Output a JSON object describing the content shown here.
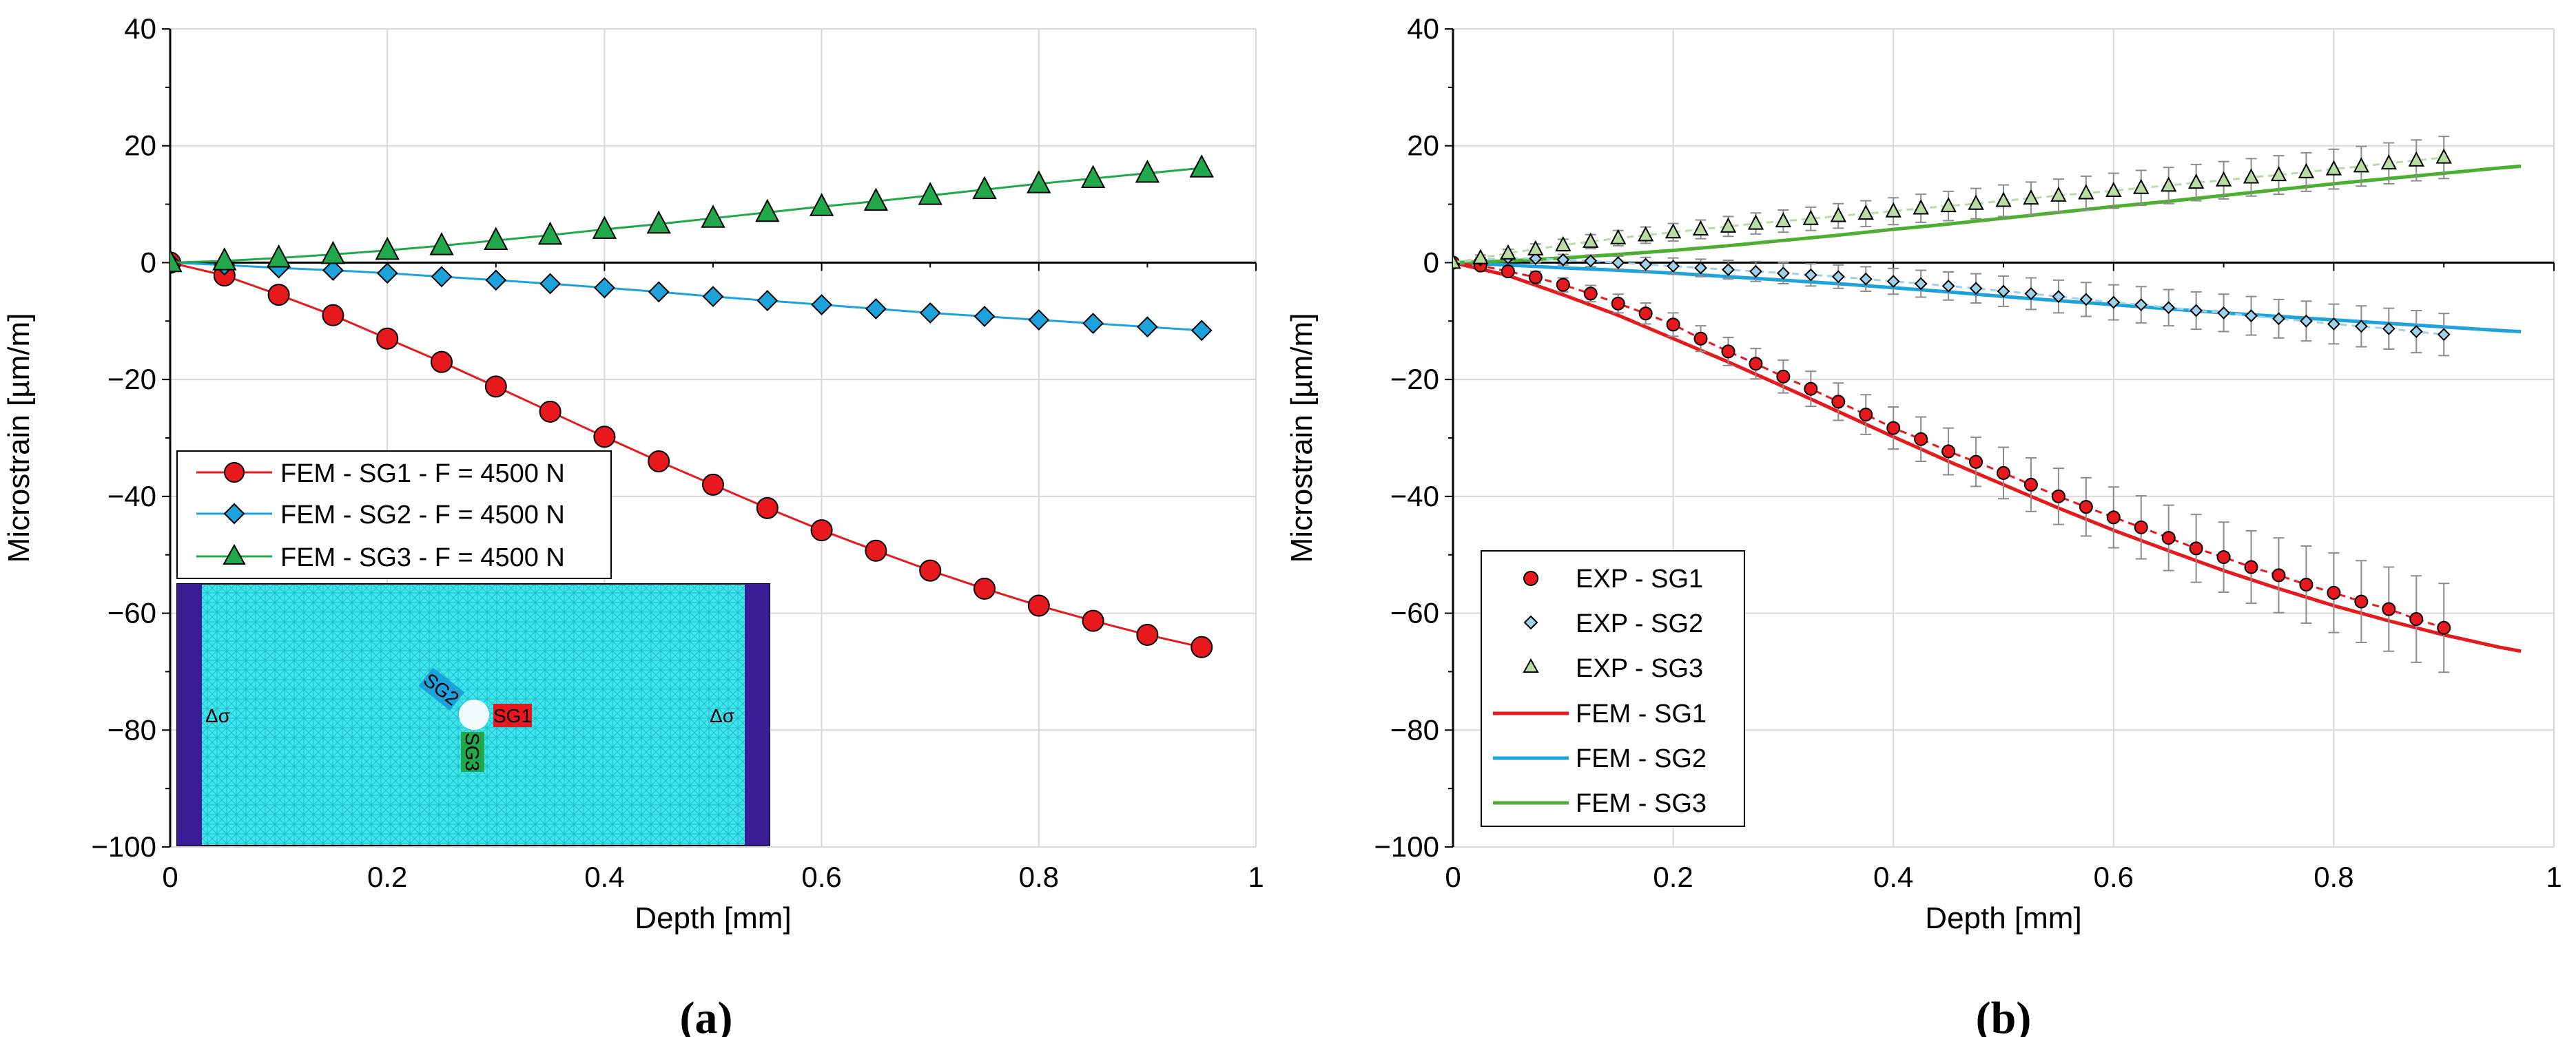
{
  "chart_data": [
    {
      "type": "line",
      "panel_label": "(a)",
      "xlabel": "Depth [mm]",
      "ylabel": "Microstrain [µm/m]",
      "xlim": [
        0,
        1
      ],
      "ylim": [
        -100,
        40
      ],
      "xticks": [
        0,
        0.2,
        0.4,
        0.6,
        0.8,
        1
      ],
      "xtick_labels": [
        "0",
        "0.2",
        "0.4",
        "0.6",
        "0.8",
        "1"
      ],
      "yticks": [
        -100,
        -80,
        -60,
        -40,
        -20,
        0,
        20,
        40
      ],
      "ytick_labels": [
        "−100",
        "−80",
        "−60",
        "−40",
        "−20",
        "0",
        "20",
        "40"
      ],
      "grid": true,
      "legend_position": "middle-left",
      "x": [
        0,
        0.05,
        0.1,
        0.15,
        0.2,
        0.25,
        0.3,
        0.35,
        0.4,
        0.45,
        0.5,
        0.55,
        0.6,
        0.65,
        0.7,
        0.75,
        0.8,
        0.85,
        0.9,
        0.95
      ],
      "series": [
        {
          "name": "FEM - SG1 - F = 4500 N",
          "color": "#e8191c",
          "marker": "circle",
          "values": [
            0,
            -2.2,
            -5.5,
            -9,
            -13,
            -17,
            -21.2,
            -25.5,
            -29.8,
            -34,
            -38,
            -42,
            -45.8,
            -49.3,
            -52.7,
            -55.8,
            -58.7,
            -61.3,
            -63.7,
            -65.8
          ]
        },
        {
          "name": "FEM - SG2 - F = 4500 N",
          "color": "#1ca3dc",
          "marker": "diamond",
          "values": [
            0,
            -0.4,
            -0.9,
            -1.3,
            -1.8,
            -2.4,
            -3,
            -3.6,
            -4.3,
            -5,
            -5.8,
            -6.5,
            -7.2,
            -7.9,
            -8.6,
            -9.2,
            -9.8,
            -10.4,
            -11,
            -11.6
          ]
        },
        {
          "name": "FEM - SG3 - F = 4500 N",
          "color": "#20a84b",
          "marker": "triangle",
          "values": [
            0,
            0.3,
            0.8,
            1.4,
            2.1,
            2.9,
            3.8,
            4.7,
            5.7,
            6.6,
            7.6,
            8.6,
            9.6,
            10.5,
            11.5,
            12.5,
            13.5,
            14.4,
            15.3,
            16.2
          ]
        }
      ],
      "inset": {
        "labels": {
          "sg1": "SG1",
          "sg2": "SG2",
          "sg3": "SG3",
          "load_left": "Δσ",
          "load_right": "Δσ"
        },
        "colors": {
          "mesh": "#3ee8ee",
          "clamp": "#3a1d96",
          "sg1": "#e8191c",
          "sg2": "#1ca3dc",
          "sg3": "#20a84b"
        }
      }
    },
    {
      "type": "line",
      "panel_label": "(b)",
      "xlabel": "Depth [mm]",
      "ylabel": "Microstrain [µm/m]",
      "xlim": [
        0,
        1
      ],
      "ylim": [
        -100,
        40
      ],
      "xticks": [
        0,
        0.2,
        0.4,
        0.6,
        0.8,
        1
      ],
      "xtick_labels": [
        "0",
        "0.2",
        "0.4",
        "0.6",
        "0.8",
        "1"
      ],
      "yticks": [
        -100,
        -80,
        -60,
        -40,
        -20,
        0,
        20,
        40
      ],
      "ytick_labels": [
        "−100",
        "−80",
        "−60",
        "−40",
        "−20",
        "0",
        "20",
        "40"
      ],
      "grid": true,
      "legend_position": "bottom-left",
      "exp_x": [
        0,
        0.025,
        0.05,
        0.075,
        0.1,
        0.125,
        0.15,
        0.175,
        0.2,
        0.225,
        0.25,
        0.275,
        0.3,
        0.325,
        0.35,
        0.375,
        0.4,
        0.425,
        0.45,
        0.475,
        0.5,
        0.525,
        0.55,
        0.575,
        0.6,
        0.625,
        0.65,
        0.675,
        0.7,
        0.725,
        0.75,
        0.775,
        0.8,
        0.825,
        0.85,
        0.875,
        0.9
      ],
      "exp_series": [
        {
          "name": "EXP - SG1",
          "color": "#e8191c",
          "marker": "circle",
          "values": [
            0,
            -0.5,
            -1.5,
            -2.5,
            -3.8,
            -5.3,
            -7,
            -8.7,
            -10.6,
            -13,
            -15.2,
            -17.3,
            -19.5,
            -21.6,
            -23.8,
            -26,
            -28.3,
            -30.2,
            -32.3,
            -34.1,
            -36,
            -38,
            -40,
            -41.8,
            -43.6,
            -45.3,
            -47.1,
            -48.9,
            -50.4,
            -52.1,
            -53.5,
            -55.1,
            -56.5,
            -58,
            -59.3,
            -61,
            -62.5
          ],
          "errors": [
            0.3,
            0.5,
            0.8,
            1,
            1.2,
            1.4,
            1.6,
            1.8,
            2,
            2.2,
            2.4,
            2.6,
            2.8,
            3,
            3.2,
            3.4,
            3.6,
            3.8,
            4,
            4.2,
            4.4,
            4.6,
            4.8,
            5,
            5.2,
            5.4,
            5.6,
            5.8,
            6,
            6.2,
            6.4,
            6.6,
            6.8,
            7,
            7.2,
            7.4,
            7.6
          ]
        },
        {
          "name": "EXP - SG2",
          "color": "#9ed2ea",
          "marker": "diamond",
          "values": [
            0,
            0.5,
            0.8,
            0.7,
            0.5,
            0.3,
            0,
            -0.3,
            -0.6,
            -0.9,
            -1.2,
            -1.5,
            -1.8,
            -2.1,
            -2.4,
            -2.8,
            -3.2,
            -3.6,
            -4,
            -4.4,
            -4.9,
            -5.3,
            -5.8,
            -6.3,
            -6.8,
            -7.2,
            -7.7,
            -8.2,
            -8.6,
            -9.1,
            -9.6,
            -10,
            -10.5,
            -10.9,
            -11.3,
            -11.8,
            -12.3
          ],
          "errors": [
            0.3,
            0.4,
            0.6,
            0.7,
            0.9,
            1,
            1.1,
            1.2,
            1.4,
            1.5,
            1.6,
            1.7,
            1.8,
            1.9,
            2,
            2.1,
            2.2,
            2.3,
            2.4,
            2.5,
            2.6,
            2.7,
            2.8,
            2.9,
            3,
            3.1,
            3.1,
            3.2,
            3.2,
            3.3,
            3.3,
            3.4,
            3.4,
            3.5,
            3.5,
            3.6,
            3.6
          ]
        },
        {
          "name": "EXP - SG3",
          "color": "#b7dda2",
          "marker": "triangle",
          "values": [
            0,
            0.8,
            1.6,
            2.3,
            3,
            3.6,
            4.2,
            4.7,
            5.2,
            5.7,
            6.2,
            6.7,
            7.1,
            7.5,
            8,
            8.4,
            8.8,
            9.3,
            9.7,
            10.1,
            10.6,
            11,
            11.5,
            11.9,
            12.3,
            12.8,
            13.2,
            13.7,
            14.1,
            14.6,
            15,
            15.5,
            16,
            16.5,
            17,
            17.5,
            18
          ],
          "errors": [
            0.3,
            0.5,
            0.7,
            0.9,
            1,
            1.2,
            1.3,
            1.4,
            1.5,
            1.6,
            1.7,
            1.8,
            1.9,
            2,
            2.1,
            2.2,
            2.3,
            2.4,
            2.5,
            2.6,
            2.7,
            2.8,
            2.8,
            2.9,
            3,
            3,
            3.1,
            3.1,
            3.2,
            3.2,
            3.3,
            3.3,
            3.4,
            3.4,
            3.5,
            3.5,
            3.6
          ]
        }
      ],
      "fem_x": [
        0,
        0.05,
        0.1,
        0.15,
        0.2,
        0.25,
        0.3,
        0.35,
        0.4,
        0.45,
        0.5,
        0.55,
        0.6,
        0.65,
        0.7,
        0.75,
        0.8,
        0.85,
        0.9,
        0.95,
        0.97
      ],
      "fem_series": [
        {
          "name": "FEM - SG1",
          "color": "#e8191c",
          "values": [
            0,
            -2.2,
            -5.5,
            -9,
            -13,
            -17,
            -21.2,
            -25.5,
            -29.8,
            -34,
            -38,
            -42,
            -45.8,
            -49.3,
            -52.7,
            -55.8,
            -58.7,
            -61.3,
            -63.7,
            -65.8,
            -66.5
          ]
        },
        {
          "name": "FEM - SG2",
          "color": "#1ca3dc",
          "values": [
            0,
            -0.4,
            -0.9,
            -1.3,
            -1.8,
            -2.4,
            -3,
            -3.6,
            -4.3,
            -5,
            -5.8,
            -6.5,
            -7.2,
            -7.9,
            -8.6,
            -9.2,
            -9.8,
            -10.4,
            -11,
            -11.6,
            -11.8
          ]
        },
        {
          "name": "FEM - SG3",
          "color": "#4caf30",
          "values": [
            0,
            0.3,
            0.8,
            1.4,
            2.1,
            2.9,
            3.8,
            4.7,
            5.7,
            6.6,
            7.6,
            8.6,
            9.6,
            10.5,
            11.5,
            12.5,
            13.5,
            14.4,
            15.3,
            16.2,
            16.5
          ]
        }
      ]
    }
  ]
}
